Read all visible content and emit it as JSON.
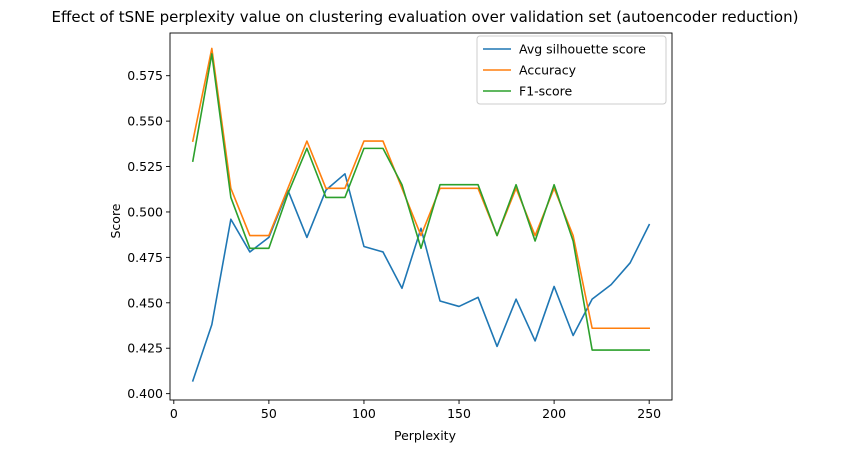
{
  "chart_data": {
    "type": "line",
    "title": "Effect of tSNE perplexity value on clustering evaluation over validation set (autoencoder reduction)",
    "xlabel": "Perplexity",
    "ylabel": "Score",
    "xlim": [
      -2,
      262
    ],
    "ylim": [
      0.3965,
      0.5985
    ],
    "xticks": [
      0,
      50,
      100,
      150,
      200,
      250
    ],
    "yticks": [
      0.4,
      0.425,
      0.45,
      0.475,
      0.5,
      0.525,
      0.55,
      0.575
    ],
    "xtick_labels": [
      "0",
      "50",
      "100",
      "150",
      "200",
      "250"
    ],
    "ytick_labels": [
      "0.400",
      "0.425",
      "0.450",
      "0.475",
      "0.500",
      "0.525",
      "0.550",
      "0.575"
    ],
    "grid": false,
    "legend_position": "upper right",
    "x": [
      10,
      20,
      30,
      40,
      50,
      60,
      70,
      80,
      90,
      100,
      110,
      120,
      130,
      140,
      150,
      160,
      170,
      180,
      190,
      200,
      210,
      220,
      230,
      240,
      250
    ],
    "series": [
      {
        "name": "Avg silhouette score",
        "color": "#1f77b4",
        "values": [
          0.407,
          0.438,
          0.496,
          0.478,
          0.486,
          0.512,
          0.486,
          0.512,
          0.521,
          0.481,
          0.478,
          0.458,
          0.491,
          0.451,
          0.448,
          0.453,
          0.426,
          0.452,
          0.429,
          0.459,
          0.432,
          0.452,
          0.46,
          0.472,
          0.493
        ]
      },
      {
        "name": "Accuracy",
        "color": "#ff7f0e",
        "values": [
          0.539,
          0.59,
          0.513,
          0.487,
          0.487,
          0.513,
          0.539,
          0.513,
          0.513,
          0.539,
          0.539,
          0.513,
          0.487,
          0.513,
          0.513,
          0.513,
          0.487,
          0.513,
          0.487,
          0.513,
          0.487,
          0.436,
          0.436,
          0.436,
          0.436
        ]
      },
      {
        "name": "F1-score",
        "color": "#2ca02c",
        "values": [
          0.528,
          0.587,
          0.508,
          0.48,
          0.48,
          0.51,
          0.535,
          0.508,
          0.508,
          0.535,
          0.535,
          0.515,
          0.48,
          0.515,
          0.515,
          0.515,
          0.487,
          0.515,
          0.484,
          0.515,
          0.484,
          0.424,
          0.424,
          0.424,
          0.424
        ]
      }
    ]
  }
}
